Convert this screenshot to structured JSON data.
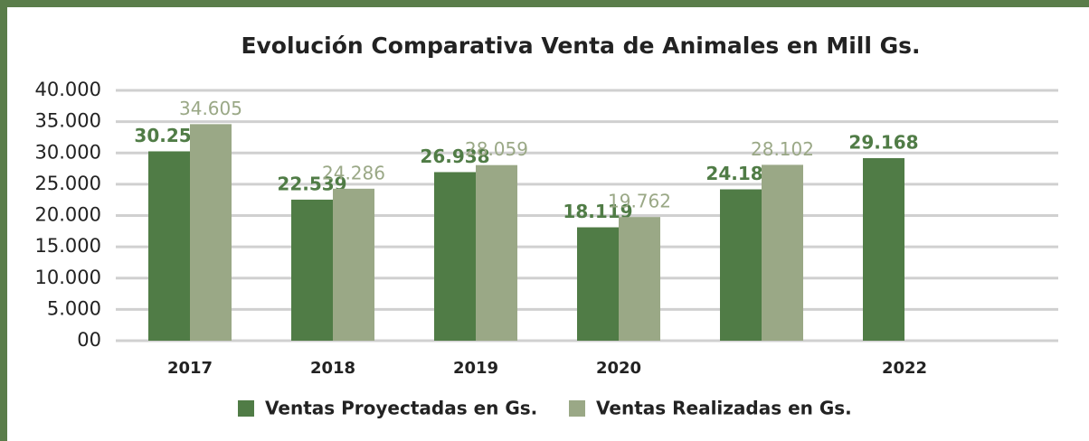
{
  "chart_data": {
    "type": "bar",
    "title": "Evolución Comparativa Venta de Animales en Mill Gs.",
    "categories": [
      "2017",
      "2018",
      "2019",
      "2020",
      null,
      "2022"
    ],
    "series": [
      {
        "name": "Ventas Proyectadas en Gs.",
        "color": "#507c46",
        "values": [
          30257,
          22539,
          26938,
          18119,
          24185,
          29168
        ],
        "value_labels": [
          "30.257",
          "22.539",
          "26.938",
          "18.119",
          "24.185",
          "29.168"
        ]
      },
      {
        "name": "Ventas Realizadas en Gs.",
        "color": "#9aa886",
        "values": [
          34605,
          24286,
          28059,
          19762,
          28102,
          null
        ],
        "value_labels": [
          "34.605",
          "24.286",
          "28.059",
          "19.762",
          "28.102",
          null
        ]
      }
    ],
    "ylim": [
      0,
      40000
    ],
    "yticks": [
      {
        "value": 0,
        "label": "00"
      },
      {
        "value": 5000,
        "label": "5.000"
      },
      {
        "value": 10000,
        "label": "10.000"
      },
      {
        "value": 15000,
        "label": "15.000"
      },
      {
        "value": 20000,
        "label": "20.000"
      },
      {
        "value": 25000,
        "label": "25.000"
      },
      {
        "value": 30000,
        "label": "30.000"
      },
      {
        "value": 35000,
        "label": "35.000"
      },
      {
        "value": 40000,
        "label": "40.000"
      }
    ],
    "grid": true,
    "legend": "bottom"
  }
}
